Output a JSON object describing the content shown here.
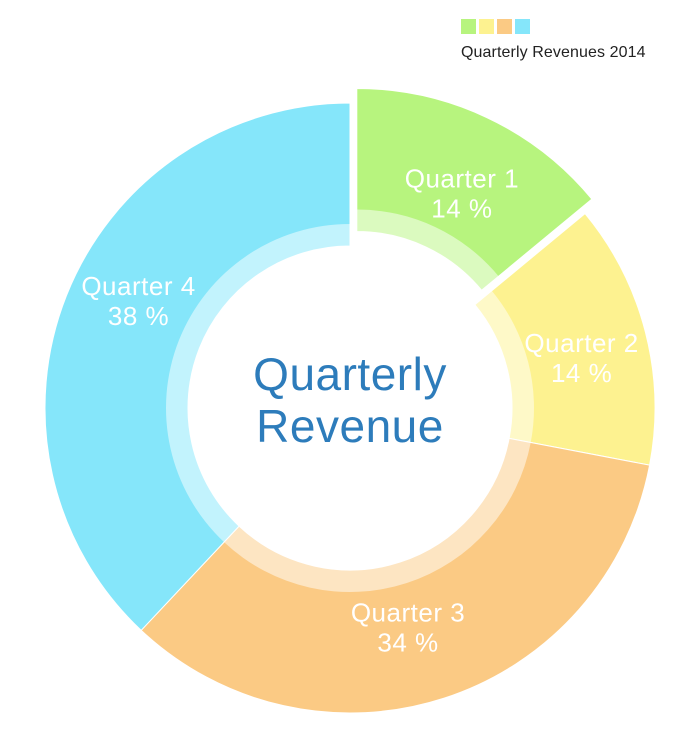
{
  "legend": {
    "title": "Quarterly Revenues 2014"
  },
  "center_label": {
    "line1": "Quarterly",
    "line2": "Revenue",
    "color": "#2d7cbb"
  },
  "chart_data": {
    "type": "pie",
    "subtype": "donut",
    "title": "Quarterly Revenue",
    "legend_title": "Quarterly Revenues 2014",
    "direction": "clockwise",
    "start_angle": "12 o'clock",
    "label_color": "#ffffff",
    "inner_ring_highlight_opacity": 0.5,
    "slices": [
      {
        "label": "Quarter 1",
        "value_pct": 14,
        "display": "14 %",
        "color": "#b7f47e",
        "exploded": true
      },
      {
        "label": "Quarter 2",
        "value_pct": 14,
        "display": "14 %",
        "color": "#fdf290",
        "exploded": false
      },
      {
        "label": "Quarter 3",
        "value_pct": 34,
        "display": "34 %",
        "color": "#fbca84",
        "exploded": false
      },
      {
        "label": "Quarter 4",
        "value_pct": 38,
        "display": "38 %",
        "color": "#85e6fa",
        "exploded": false
      }
    ]
  }
}
